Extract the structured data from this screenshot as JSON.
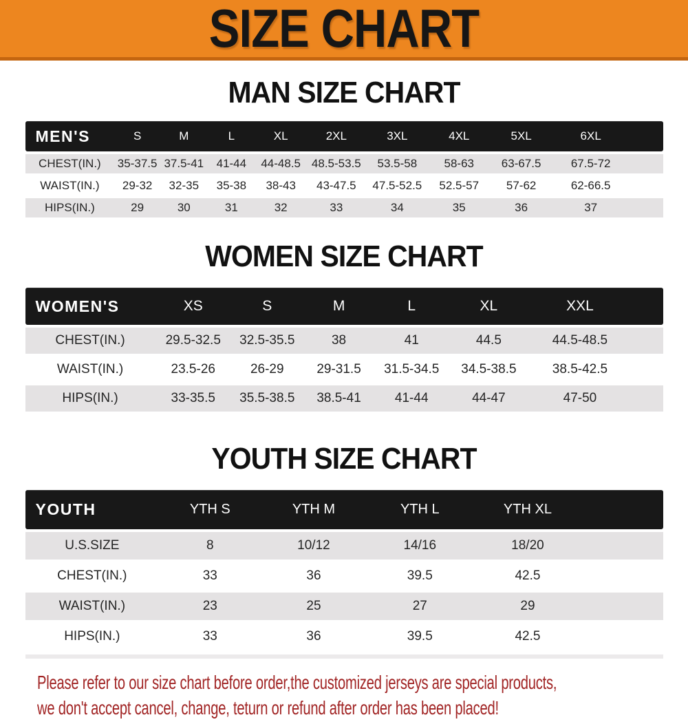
{
  "banner": {
    "title": "SIZE CHART",
    "bg_color": "#ED861F",
    "edge_color": "#C4650F",
    "text_color": "#161616"
  },
  "table_colors": {
    "header_bg": "#181818",
    "stripe": "#E4E2E3"
  },
  "sections": [
    {
      "id": "men",
      "title": "MAN SIZE CHART",
      "header_label": "MEN'S",
      "sizes": [
        "S",
        "M",
        "L",
        "XL",
        "2XL",
        "3XL",
        "4XL",
        "5XL",
        "6XL"
      ],
      "rows": [
        {
          "label": "CHEST(IN.)",
          "values": [
            "35-37.5",
            "37.5-41",
            "41-44",
            "44-48.5",
            "48.5-53.5",
            "53.5-58",
            "58-63",
            "63-67.5",
            "67.5-72"
          ]
        },
        {
          "label": "WAIST(IN.)",
          "values": [
            "29-32",
            "32-35",
            "35-38",
            "38-43",
            "43-47.5",
            "47.5-52.5",
            "52.5-57",
            "57-62",
            "62-66.5"
          ]
        },
        {
          "label": "HIPS(IN.)",
          "values": [
            "29",
            "30",
            "31",
            "32",
            "33",
            "34",
            "35",
            "36",
            "37"
          ]
        }
      ]
    },
    {
      "id": "women",
      "title": "WOMEN SIZE CHART",
      "header_label": "WOMEN'S",
      "sizes": [
        "XS",
        "S",
        "M",
        "L",
        "XL",
        "XXL"
      ],
      "rows": [
        {
          "label": "CHEST(IN.)",
          "values": [
            "29.5-32.5",
            "32.5-35.5",
            "38",
            "41",
            "44.5",
            "44.5-48.5"
          ]
        },
        {
          "label": "WAIST(IN.)",
          "values": [
            "23.5-26",
            "26-29",
            "29-31.5",
            "31.5-34.5",
            "34.5-38.5",
            "38.5-42.5"
          ]
        },
        {
          "label": "HIPS(IN.)",
          "values": [
            "33-35.5",
            "35.5-38.5",
            "38.5-41",
            "41-44",
            "44-47",
            "47-50"
          ]
        }
      ]
    },
    {
      "id": "youth",
      "title": "YOUTH SIZE CHART",
      "header_label": "YOUTH",
      "sizes": [
        "YTH S",
        "YTH M",
        "YTH L",
        "YTH XL"
      ],
      "rows": [
        {
          "label": "U.S.SIZE",
          "values": [
            "8",
            "10/12",
            "14/16",
            "18/20"
          ]
        },
        {
          "label": "CHEST(IN.)",
          "values": [
            "33",
            "36",
            "39.5",
            "42.5"
          ]
        },
        {
          "label": "WAIST(IN.)",
          "values": [
            "23",
            "25",
            "27",
            "29"
          ]
        },
        {
          "label": "HIPS(IN.)",
          "values": [
            "33",
            "36",
            "39.5",
            "42.5"
          ]
        }
      ]
    }
  ],
  "footnote": {
    "line1": "Please refer to our size chart before order,the customized jerseys are special products,",
    "line2": "we don't accept cancel, change, teturn or refund after order has been placed!",
    "color": "#A12424"
  }
}
